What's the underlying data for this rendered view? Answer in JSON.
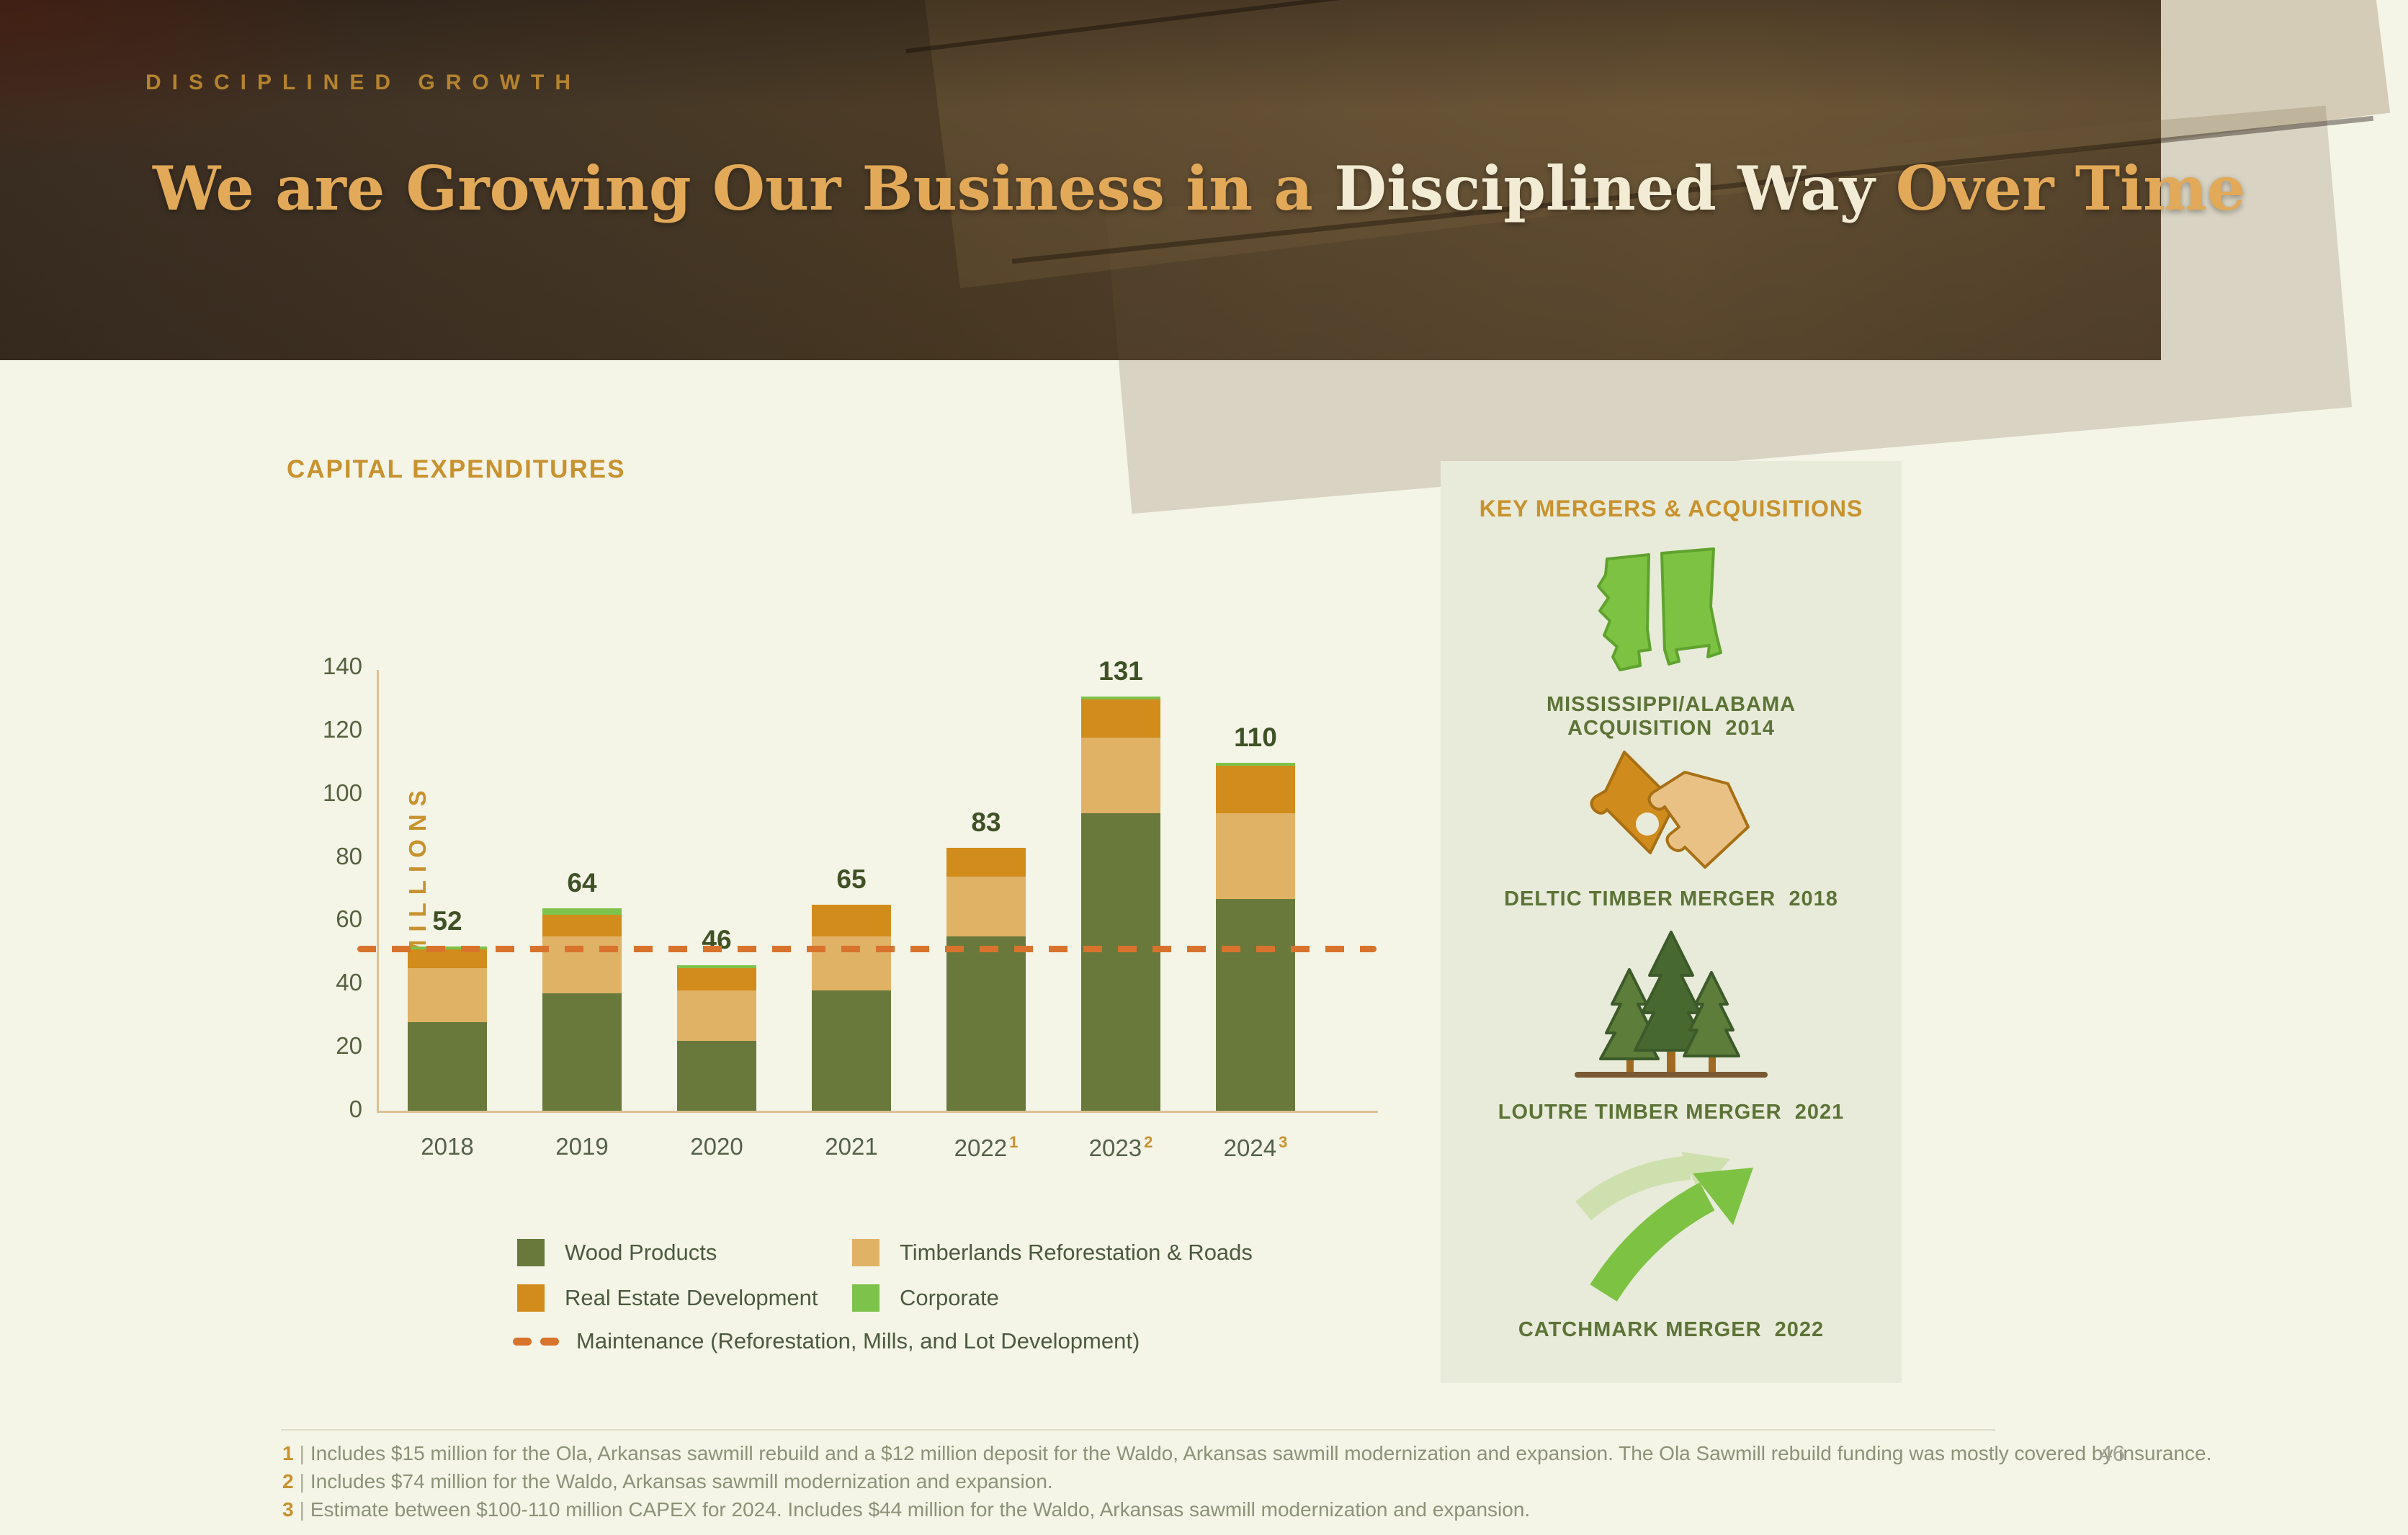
{
  "page": {
    "number": "46",
    "background_color": "#f4f4e7"
  },
  "header": {
    "eyebrow": "DISCIPLINED GROWTH",
    "title_part1": "We are Growing Our Business in a ",
    "title_part2": "Disciplined Way ",
    "title_part3": "Over Time",
    "title_gold_color": "#e2a958",
    "title_cream_color": "#f3ecd4"
  },
  "chart": {
    "title": "CAPITAL EXPENDITURES",
    "y_axis_title": "$ MILLIONS",
    "y_ticks": [
      0,
      20,
      40,
      60,
      80,
      100,
      120,
      140
    ]
  },
  "chart_data": {
    "type": "bar",
    "stacked": true,
    "title": "CAPITAL EXPENDITURES",
    "ylabel": "$ MILLIONS",
    "ylim": [
      0,
      140
    ],
    "grid": false,
    "legend_position": "bottom",
    "categories": [
      "2018",
      "2019",
      "2020",
      "2021",
      "2022",
      "2023",
      "2024"
    ],
    "category_superscripts": [
      "",
      "",
      "",
      "",
      "1",
      "2",
      "3"
    ],
    "totals": [
      52,
      64,
      46,
      65,
      83,
      131,
      110
    ],
    "series": [
      {
        "name": "Wood Products",
        "color": "#68793b",
        "values": [
          28,
          37,
          22,
          38,
          55,
          94,
          67
        ]
      },
      {
        "name": "Timberlands Reforestation & Roads",
        "color": "#e0b266",
        "values": [
          17,
          18,
          16,
          17,
          19,
          24,
          27
        ]
      },
      {
        "name": "Real Estate Development",
        "color": "#d18c1c",
        "values": [
          6,
          7,
          7,
          10,
          9,
          12,
          15
        ]
      },
      {
        "name": "Corporate",
        "color": "#7dc24b",
        "values": [
          1,
          2,
          1,
          0,
          0,
          1,
          1
        ]
      }
    ],
    "reference_line": {
      "label": "Maintenance (Reforestation, Mills, and Lot Development)",
      "value": 51,
      "color": "#d8732d",
      "style": "dashed"
    }
  },
  "panel": {
    "title": "KEY MERGERS & ACQUISITIONS",
    "items": [
      {
        "icon": "mississippi-alabama-states-icon",
        "label": "MISSISSIPPI/ALABAMA ACQUISITION",
        "year": "2014"
      },
      {
        "icon": "puzzle-pieces-icon",
        "label": "DELTIC TIMBER MERGER",
        "year": "2018"
      },
      {
        "icon": "pine-trees-icon",
        "label": "LOUTRE TIMBER MERGER",
        "year": "2021"
      },
      {
        "icon": "merging-arrows-icon",
        "label": "CATCHMARK MERGER",
        "year": "2022"
      }
    ]
  },
  "footnotes": {
    "separator": "|",
    "items": [
      {
        "num": "1",
        "text": "Includes $15 million for the Ola, Arkansas sawmill rebuild and a $12 million deposit for the Waldo, Arkansas sawmill modernization and expansion. The Ola Sawmill rebuild funding was mostly covered by insurance."
      },
      {
        "num": "2",
        "text": "Includes $74 million for the Waldo, Arkansas sawmill modernization and expansion."
      },
      {
        "num": "3",
        "text": "Estimate between $100-110 million CAPEX for 2024. Includes $44 million for the Waldo, Arkansas sawmill modernization and expansion."
      }
    ]
  }
}
